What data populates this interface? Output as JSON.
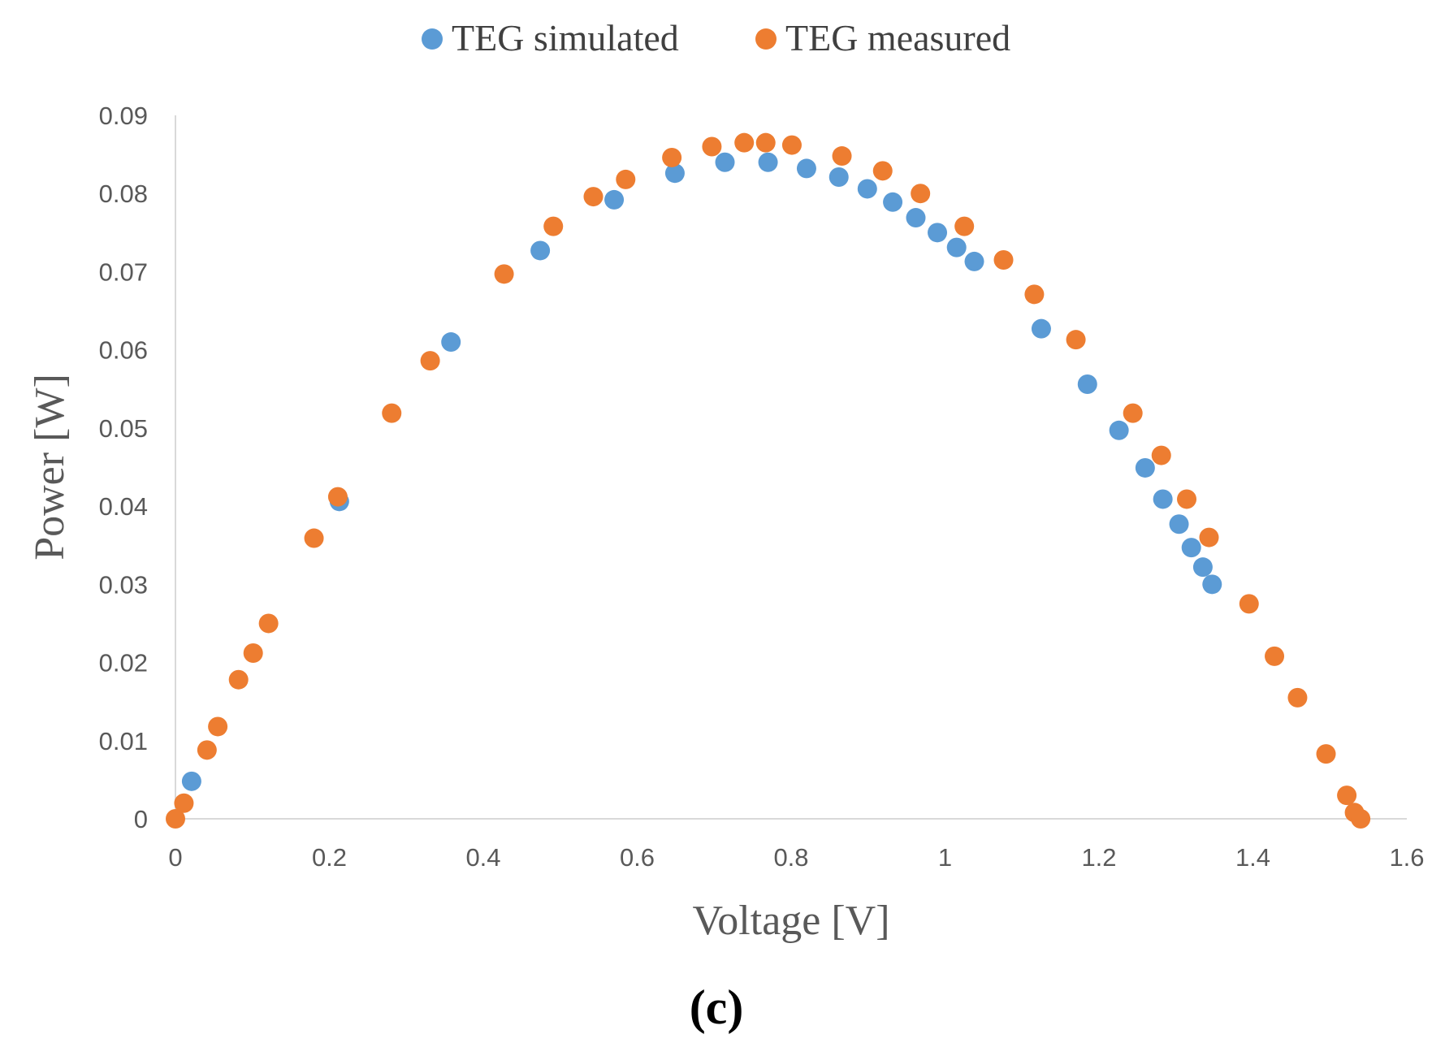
{
  "chart_data": {
    "type": "scatter",
    "title": "",
    "xlabel": "Voltage [V]",
    "ylabel": "Power [W]",
    "xlim": [
      0,
      1.6
    ],
    "ylim": [
      0,
      0.09
    ],
    "x_ticks": [
      0,
      0.2,
      0.4,
      0.6,
      0.8,
      1,
      1.2,
      1.4,
      1.6
    ],
    "x_tick_labels": [
      "0",
      "0.2",
      "0.4",
      "0.6",
      "0.8",
      "1",
      "1.2",
      "1.4",
      "1.6"
    ],
    "y_ticks": [
      0,
      0.01,
      0.02,
      0.03,
      0.04,
      0.05,
      0.06,
      0.07,
      0.08,
      0.09
    ],
    "y_tick_labels": [
      "0",
      "0.01",
      "0.02",
      "0.03",
      "0.04",
      "0.05",
      "0.06",
      "0.07",
      "0.08",
      "0.09"
    ],
    "grid": false,
    "legend_position": "top",
    "panel_label": "(c)",
    "series": [
      {
        "name": "TEG simulated",
        "color": "#5B9BD5",
        "points": [
          [
            0.021,
            0.0048
          ],
          [
            0.213,
            0.0406
          ],
          [
            0.358,
            0.061
          ],
          [
            0.474,
            0.0727
          ],
          [
            0.57,
            0.0792
          ],
          [
            0.649,
            0.0826
          ],
          [
            0.714,
            0.084
          ],
          [
            0.77,
            0.084
          ],
          [
            0.82,
            0.0832
          ],
          [
            0.862,
            0.0821
          ],
          [
            0.899,
            0.0806
          ],
          [
            0.932,
            0.0789
          ],
          [
            0.962,
            0.0769
          ],
          [
            0.99,
            0.075
          ],
          [
            1.015,
            0.0731
          ],
          [
            1.038,
            0.0713
          ],
          [
            1.125,
            0.0627
          ],
          [
            1.185,
            0.0556
          ],
          [
            1.226,
            0.0497
          ],
          [
            1.26,
            0.0449
          ],
          [
            1.283,
            0.0409
          ],
          [
            1.304,
            0.0377
          ],
          [
            1.32,
            0.0347
          ],
          [
            1.335,
            0.0322
          ],
          [
            1.347,
            0.03
          ]
        ]
      },
      {
        "name": "TEG measured",
        "color": "#ED7D31",
        "points": [
          [
            0.0,
            0.0
          ],
          [
            0.011,
            0.002
          ],
          [
            0.041,
            0.0088
          ],
          [
            0.055,
            0.0118
          ],
          [
            0.082,
            0.0178
          ],
          [
            0.101,
            0.0212
          ],
          [
            0.121,
            0.025
          ],
          [
            0.18,
            0.0359
          ],
          [
            0.211,
            0.0412
          ],
          [
            0.281,
            0.0519
          ],
          [
            0.331,
            0.0586
          ],
          [
            0.427,
            0.0697
          ],
          [
            0.491,
            0.0758
          ],
          [
            0.543,
            0.0796
          ],
          [
            0.585,
            0.0818
          ],
          [
            0.645,
            0.0846
          ],
          [
            0.697,
            0.086
          ],
          [
            0.739,
            0.0865
          ],
          [
            0.767,
            0.0865
          ],
          [
            0.801,
            0.0862
          ],
          [
            0.866,
            0.0848
          ],
          [
            0.919,
            0.0829
          ],
          [
            0.968,
            0.08
          ],
          [
            1.025,
            0.0758
          ],
          [
            1.076,
            0.0715
          ],
          [
            1.116,
            0.0671
          ],
          [
            1.17,
            0.0613
          ],
          [
            1.244,
            0.0519
          ],
          [
            1.281,
            0.0465
          ],
          [
            1.314,
            0.0409
          ],
          [
            1.343,
            0.036
          ],
          [
            1.395,
            0.0275
          ],
          [
            1.428,
            0.0208
          ],
          [
            1.458,
            0.0155
          ],
          [
            1.495,
            0.0083
          ],
          [
            1.522,
            0.003
          ],
          [
            1.532,
            0.0008
          ],
          [
            1.54,
            0.0
          ]
        ]
      }
    ]
  }
}
